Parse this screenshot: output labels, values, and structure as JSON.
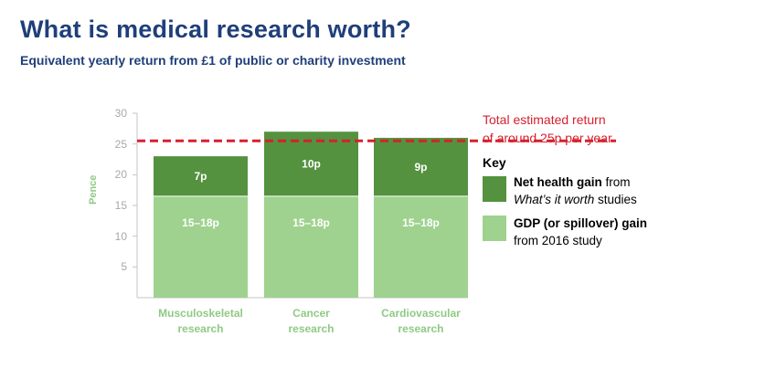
{
  "title": "What is medical research worth?",
  "subtitle": "Equivalent yearly return from £1 of public or charity investment",
  "reference_line": {
    "value": 25.5,
    "label_line1": "Total estimated return",
    "label_line2": "of around 25p per year",
    "color": "#d6202d"
  },
  "legend": {
    "title": "Key",
    "items": [
      {
        "bold": "Net health gain",
        "rest1": " from",
        "italic": "What’s it worth",
        "rest2": " studies",
        "color": "#54923f"
      },
      {
        "bold": "GDP (or spillover) gain",
        "line2": "from 2016 study",
        "color": "#9ed28e"
      }
    ]
  },
  "chart_data": {
    "type": "bar",
    "stacked": true,
    "categories": [
      "Musculoskeletal research",
      "Cancer research",
      "Cardiovascular research"
    ],
    "category_lines": [
      [
        "Musculoskeletal",
        "research"
      ],
      [
        "Cancer",
        "research"
      ],
      [
        "Cardiovascular",
        "research"
      ]
    ],
    "series": [
      {
        "name": "GDP (or spillover) gain",
        "values": [
          16.5,
          16.5,
          16.5
        ],
        "labels": [
          "15–18p",
          "15–18p",
          "15–18p"
        ],
        "color": "#9ed28e"
      },
      {
        "name": "Net health gain",
        "values": [
          6.5,
          10.5,
          9.5
        ],
        "labels": [
          "7p",
          "10p",
          "9p"
        ],
        "color": "#54923f"
      }
    ],
    "ylabel": "Pence",
    "ylim": [
      0,
      30
    ],
    "yticks": [
      5,
      10,
      15,
      20,
      25,
      30
    ],
    "grid": false
  }
}
